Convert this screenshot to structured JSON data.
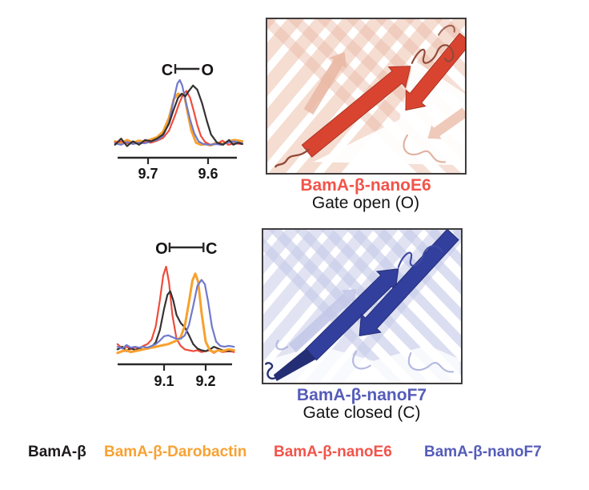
{
  "colors": {
    "axis": "#2b2829",
    "border": "#3f3c3d",
    "traces": {
      "black": "#363132",
      "orange": "#f7a12e",
      "red": "#ef4d3d",
      "blue": "#7179ca"
    },
    "labels": {
      "black": "#1d1a1b",
      "orange": "#f7a233",
      "red": "#f2544a",
      "blue": "#555cb9"
    },
    "structures": {
      "open": {
        "bold": "#d94430",
        "bold_dark": "#a83322",
        "faint": "#f4d9cc",
        "faint2": "#e9b7a3",
        "loop": "#93493a",
        "loop_light": "#dfb3a1"
      },
      "closed": {
        "bold": "#323f9c",
        "bold_dark": "#242e74",
        "faint": "#dfe1f2",
        "faint2": "#c3c8e8",
        "loop": "#3f4aa4",
        "loop_light": "#b3b9e0"
      }
    }
  },
  "chart_data": [
    {
      "type": "line",
      "panel": "gate-open-reporter",
      "x_unit": "ppm",
      "x_axis_reversed": true,
      "x_range": [
        9.755,
        9.543
      ],
      "x_ticks": [
        {
          "value": 9.7,
          "label": "9.7"
        },
        {
          "value": 9.6,
          "label": "9.6"
        }
      ],
      "ylim": [
        0,
        1
      ],
      "grid": false,
      "annotation": {
        "left_label": "C",
        "right_label": "O",
        "left_x": 9.668,
        "right_x": 9.601,
        "end_ticks": "left"
      },
      "series": [
        {
          "name": "BamA-β-Darobactin",
          "color_key": "orange",
          "x": [
            9.755,
            9.745,
            9.735,
            9.725,
            9.715,
            9.705,
            9.695,
            9.685,
            9.675,
            9.665,
            9.657,
            9.65,
            9.645,
            9.64,
            9.634,
            9.628,
            9.62,
            9.612,
            9.604,
            9.596,
            9.586,
            9.576,
            9.566,
            9.556,
            9.543
          ],
          "y": [
            0.1,
            0.07,
            0.12,
            0.08,
            0.11,
            0.09,
            0.13,
            0.16,
            0.24,
            0.45,
            0.72,
            0.8,
            0.77,
            0.8,
            0.52,
            0.26,
            0.08,
            0.05,
            0.06,
            0.04,
            0.08,
            0.06,
            0.1,
            0.12,
            0.1
          ]
        },
        {
          "name": "BamA-β-nanoE6",
          "color_key": "red",
          "x": [
            9.755,
            9.745,
            9.735,
            9.725,
            9.715,
            9.705,
            9.695,
            9.685,
            9.675,
            9.665,
            9.655,
            9.648,
            9.642,
            9.636,
            9.63,
            9.624,
            9.618,
            9.612,
            9.605,
            9.596,
            9.586,
            9.576,
            9.566,
            9.556,
            9.543
          ],
          "y": [
            0.08,
            0.1,
            0.07,
            0.09,
            0.06,
            0.09,
            0.08,
            0.11,
            0.15,
            0.26,
            0.48,
            0.66,
            0.78,
            0.84,
            0.74,
            0.55,
            0.34,
            0.18,
            0.09,
            0.05,
            0.06,
            0.11,
            0.05,
            0.07,
            0.06
          ]
        },
        {
          "name": "BamA-β-nanoF7",
          "color_key": "blue",
          "x": [
            9.755,
            9.745,
            9.735,
            9.725,
            9.715,
            9.705,
            9.695,
            9.685,
            9.675,
            9.665,
            9.657,
            9.651,
            9.647,
            9.643,
            9.637,
            9.63,
            9.623,
            9.616,
            9.608,
            9.598,
            9.588,
            9.578,
            9.568,
            9.558,
            9.543
          ],
          "y": [
            0.07,
            0.05,
            0.09,
            0.06,
            0.08,
            0.07,
            0.1,
            0.12,
            0.18,
            0.38,
            0.72,
            0.95,
            1.0,
            0.92,
            0.68,
            0.42,
            0.22,
            0.1,
            0.06,
            0.05,
            0.06,
            0.05,
            0.08,
            0.1,
            0.07
          ]
        },
        {
          "name": "BamA-β",
          "color_key": "black",
          "x": [
            9.755,
            9.745,
            9.735,
            9.725,
            9.715,
            9.705,
            9.695,
            9.685,
            9.675,
            9.665,
            9.658,
            9.65,
            9.644,
            9.638,
            9.632,
            9.625,
            9.618,
            9.61,
            9.602,
            9.595,
            9.585,
            9.575,
            9.565,
            9.558,
            9.55,
            9.543
          ],
          "y": [
            0.05,
            0.14,
            0.03,
            0.1,
            0.05,
            0.12,
            0.1,
            0.14,
            0.2,
            0.36,
            0.55,
            0.74,
            0.8,
            0.76,
            0.84,
            0.92,
            0.86,
            0.66,
            0.4,
            0.2,
            0.08,
            0.05,
            0.12,
            0.05,
            0.08,
            0.06
          ]
        }
      ]
    },
    {
      "type": "line",
      "panel": "gate-closed-reporter",
      "x_unit": "ppm",
      "x_axis_reversed": false,
      "x_range": [
        8.988,
        9.268
      ],
      "x_ticks": [
        {
          "value": 9.1,
          "label": "9.1"
        },
        {
          "value": 9.2,
          "label": "9.2"
        }
      ],
      "ylim": [
        0,
        1
      ],
      "grid": false,
      "annotation": {
        "left_label": "O",
        "right_label": "C",
        "left_x": 9.094,
        "right_x": 9.214,
        "end_ticks": "both"
      },
      "series": [
        {
          "name": "BamA-β-nanoE6",
          "color_key": "red",
          "x": [
            8.988,
            9.0,
            9.01,
            9.02,
            9.03,
            9.04,
            9.05,
            9.06,
            9.07,
            9.08,
            9.09,
            9.098,
            9.105,
            9.112,
            9.12,
            9.13,
            9.14,
            9.15,
            9.16,
            9.17,
            9.18,
            9.19,
            9.2,
            9.21,
            9.22,
            9.23,
            9.24,
            9.255,
            9.268
          ],
          "y": [
            0.12,
            0.07,
            0.09,
            0.06,
            0.08,
            0.07,
            0.1,
            0.12,
            0.17,
            0.32,
            0.62,
            0.9,
            1.0,
            0.82,
            0.45,
            0.18,
            0.1,
            0.06,
            0.05,
            0.04,
            0.05,
            0.03,
            0.04,
            0.05,
            0.02,
            0.05,
            0.03,
            0.04,
            0.03
          ]
        },
        {
          "name": "BamA-β",
          "color_key": "black",
          "x": [
            8.988,
            9.0,
            9.01,
            9.02,
            9.03,
            9.04,
            9.05,
            9.06,
            9.07,
            9.08,
            9.09,
            9.1,
            9.108,
            9.115,
            9.122,
            9.13,
            9.14,
            9.15,
            9.16,
            9.17,
            9.18,
            9.19,
            9.2,
            9.21,
            9.22,
            9.23,
            9.24,
            9.255,
            9.268
          ],
          "y": [
            0.06,
            0.09,
            0.04,
            0.08,
            0.05,
            0.07,
            0.06,
            0.07,
            0.09,
            0.14,
            0.28,
            0.52,
            0.68,
            0.72,
            0.62,
            0.45,
            0.36,
            0.31,
            0.22,
            0.12,
            0.07,
            0.05,
            0.04,
            0.06,
            0.09,
            0.07,
            0.05,
            0.04,
            0.05
          ]
        },
        {
          "name": "BamA-β-Darobactin",
          "color_key": "orange",
          "x": [
            8.988,
            9.0,
            9.01,
            9.02,
            9.03,
            9.04,
            9.05,
            9.06,
            9.07,
            9.08,
            9.09,
            9.1,
            9.11,
            9.12,
            9.13,
            9.14,
            9.15,
            9.16,
            9.168,
            9.175,
            9.182,
            9.19,
            9.2,
            9.21,
            9.22,
            9.23,
            9.24,
            9.255,
            9.268
          ],
          "y": [
            0.02,
            0.04,
            0.05,
            0.03,
            0.04,
            0.05,
            0.06,
            0.07,
            0.08,
            0.09,
            0.1,
            0.11,
            0.12,
            0.14,
            0.16,
            0.2,
            0.33,
            0.6,
            0.84,
            0.92,
            0.83,
            0.48,
            0.15,
            0.05,
            0.03,
            0.05,
            0.04,
            0.06,
            0.05
          ]
        },
        {
          "name": "BamA-β-nanoF7",
          "color_key": "blue",
          "x": [
            8.988,
            9.0,
            9.01,
            9.02,
            9.03,
            9.04,
            9.05,
            9.06,
            9.07,
            9.08,
            9.09,
            9.1,
            9.11,
            9.12,
            9.13,
            9.14,
            9.15,
            9.16,
            9.17,
            9.18,
            9.19,
            9.198,
            9.206,
            9.215,
            9.225,
            9.235,
            9.245,
            9.255,
            9.268
          ],
          "y": [
            0.09,
            0.07,
            0.11,
            0.08,
            0.09,
            0.08,
            0.09,
            0.08,
            0.1,
            0.12,
            0.16,
            0.21,
            0.22,
            0.2,
            0.18,
            0.18,
            0.22,
            0.34,
            0.55,
            0.78,
            0.85,
            0.8,
            0.6,
            0.32,
            0.15,
            0.1,
            0.09,
            0.1,
            0.09
          ]
        }
      ]
    }
  ],
  "structures": {
    "open": {
      "name": "BamA-β-nanoE6",
      "state": "Gate open (O)"
    },
    "closed": {
      "name": "BamA-β-nanoF7",
      "state": "Gate closed (C)"
    }
  },
  "legend": {
    "items": [
      {
        "label": "BamA-β",
        "color_key": "black"
      },
      {
        "label": "BamA-β-Darobactin",
        "color_key": "orange"
      },
      {
        "label": "BamA-β-nanoE6",
        "color_key": "red"
      },
      {
        "label": "BamA-β-nanoF7",
        "color_key": "blue"
      }
    ]
  }
}
